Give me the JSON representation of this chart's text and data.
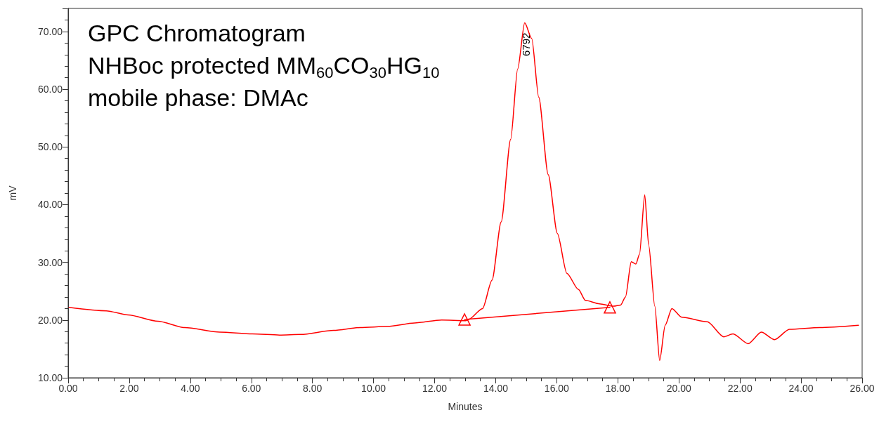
{
  "chart_data": {
    "type": "line",
    "title": "GPC Chromatogram",
    "subtitle": "NHBoc protected MM$_{60}$CO$_{30}$HG$_{10}$",
    "annotations": [
      "mobile phase: DMAc",
      {
        "text": "6792",
        "x": 14.95,
        "y": 71.5
      }
    ],
    "xlabel": "Minutes",
    "ylabel": "mV",
    "xlim": [
      0,
      26
    ],
    "ylim": [
      10,
      74
    ],
    "xticks": [
      {
        "value": 0,
        "label": "0.00"
      },
      {
        "value": 2,
        "label": "2.00"
      },
      {
        "value": 4,
        "label": "4.00"
      },
      {
        "value": 6,
        "label": "6.00"
      },
      {
        "value": 8,
        "label": "8.00"
      },
      {
        "value": 10,
        "label": "10.00"
      },
      {
        "value": 12,
        "label": "12.00"
      },
      {
        "value": 14,
        "label": "14.00"
      },
      {
        "value": 16,
        "label": "16.00"
      },
      {
        "value": 18,
        "label": "18.00"
      },
      {
        "value": 20,
        "label": "20.00"
      },
      {
        "value": 22,
        "label": "22.00"
      },
      {
        "value": 24,
        "label": "24.00"
      },
      {
        "value": 26,
        "label": "26.00"
      }
    ],
    "yticks": [
      {
        "value": 10,
        "label": "10.00"
      },
      {
        "value": 20,
        "label": "20.00"
      },
      {
        "value": 30,
        "label": "30.00"
      },
      {
        "value": 40,
        "label": "40.00"
      },
      {
        "value": 50,
        "label": "50.00"
      },
      {
        "value": 60,
        "label": "60.00"
      },
      {
        "value": 70,
        "label": "70.00"
      }
    ],
    "grid": false,
    "series": [
      {
        "type": "line",
        "color": "#ff0000",
        "marker": "none",
        "x": [
          0.03,
          1.25,
          1.96,
          2.94,
          3.82,
          4.97,
          6.03,
          6.92,
          7.62,
          8.69,
          9.57,
          10.46,
          11.34,
          12.23,
          13.02,
          13.11,
          13.57,
          13.88,
          14.18,
          14.49,
          14.72,
          14.95,
          15.18,
          15.41,
          15.72,
          16.02,
          16.33,
          16.71,
          16.94,
          17.4,
          17.86,
          18.09,
          18.25,
          18.44,
          18.59,
          18.71,
          18.88,
          19.01,
          19.21,
          19.37,
          19.55,
          19.77,
          20.09,
          20.93,
          21.47,
          21.77,
          22.27,
          22.7,
          23.13,
          23.62,
          24.61,
          25.88
        ],
        "values": [
          22.2,
          21.6,
          20.9,
          19.8,
          18.7,
          17.9,
          17.6,
          17.4,
          17.5,
          18.2,
          18.7,
          18.9,
          19.5,
          20.0,
          19.9,
          20.1,
          22.0,
          26.9,
          37.0,
          51.3,
          63.5,
          71.5,
          68.8,
          58.6,
          45.2,
          35.0,
          28.1,
          25.3,
          23.4,
          22.8,
          22.4,
          22.6,
          24.0,
          30.1,
          29.7,
          31.4,
          41.7,
          33.0,
          22.4,
          13.0,
          19.1,
          22.0,
          20.5,
          19.7,
          17.1,
          17.6,
          15.9,
          17.9,
          16.6,
          18.4,
          18.7,
          19.1
        ]
      },
      {
        "type": "line",
        "color": "#ff0000",
        "marker": "triangle",
        "x": [
          12.98,
          17.74
        ],
        "values": [
          20.1,
          22.2
        ]
      }
    ]
  }
}
